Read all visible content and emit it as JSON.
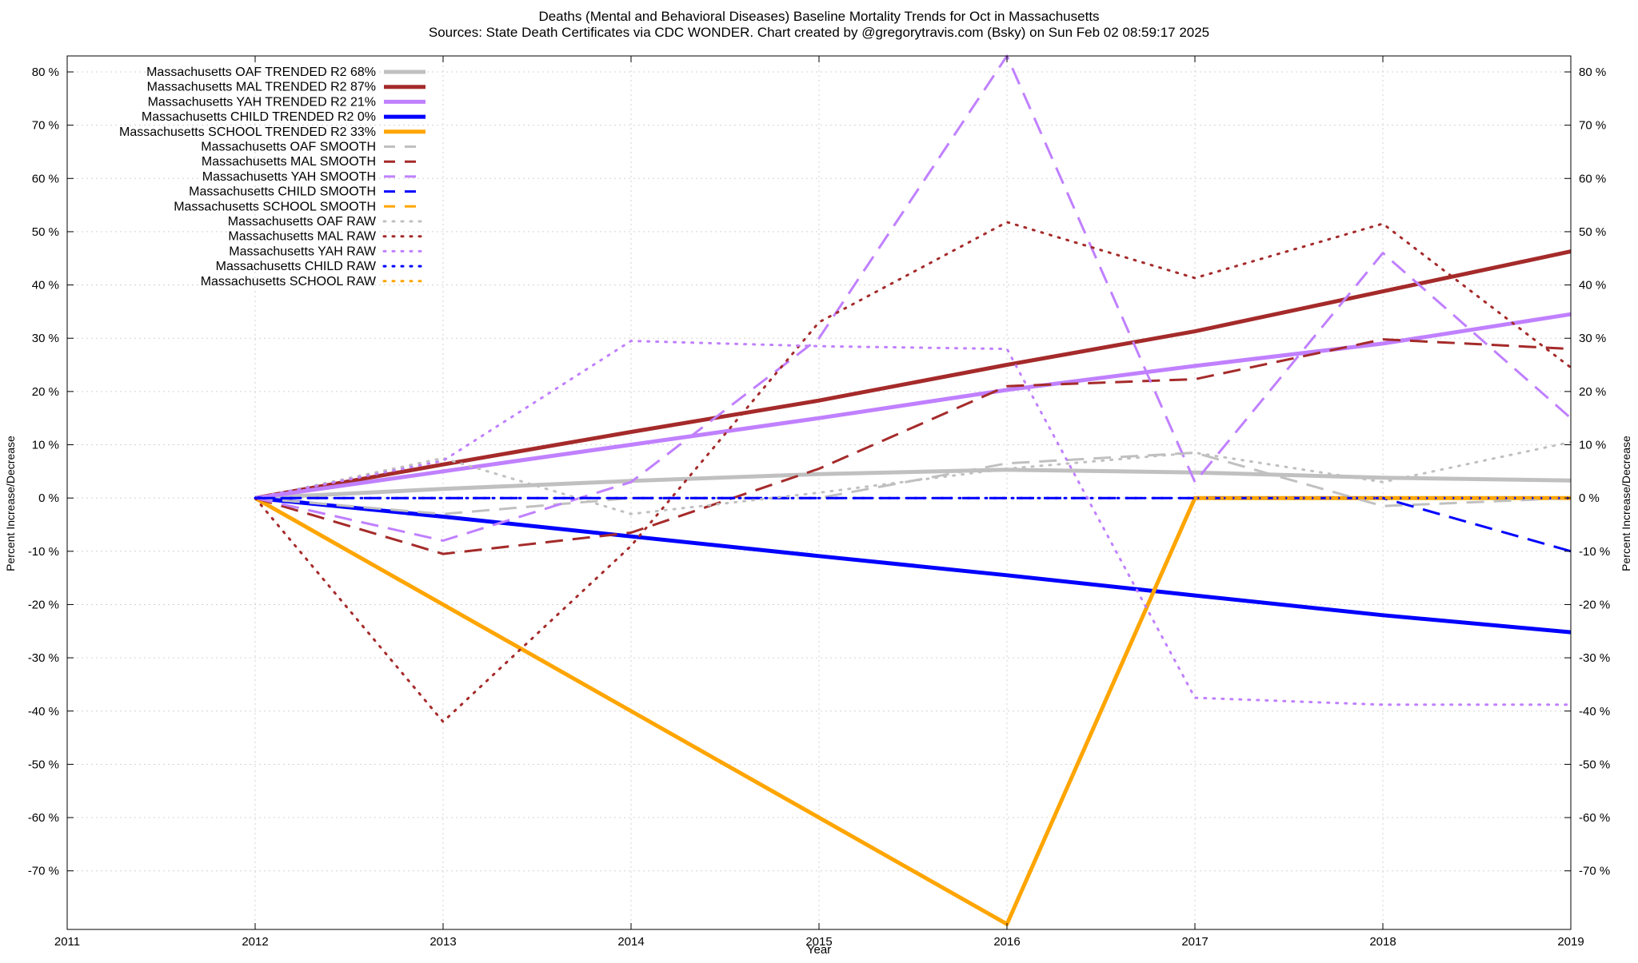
{
  "chart_data": {
    "type": "line",
    "title_line1": "Deaths (Mental and Behavioral Diseases)  Baseline Mortality Trends for Oct in Massachusetts",
    "title_line2": "Sources: State Death Certificates via CDC WONDER.               Chart created by @gregorytravis.com (Bsky) on Sun Feb 02 08:59:17 2025",
    "xlabel": "Year",
    "ylabel_left": "Percent Increase/Decrease",
    "ylabel_right": "Percent Increase/Decrease",
    "xlim": [
      2011,
      2019
    ],
    "ylim": [
      -81,
      83
    ],
    "x_ticks": [
      2011,
      2012,
      2013,
      2014,
      2015,
      2016,
      2017,
      2018,
      2019
    ],
    "x_tick_labels": [
      "2011",
      "2012",
      "2013",
      "2014",
      "2015",
      "2016",
      "2017",
      "2018",
      "2019"
    ],
    "y_ticks": [
      80,
      70,
      60,
      50,
      40,
      30,
      20,
      10,
      0,
      -10,
      -20,
      -30,
      -40,
      -50,
      -60,
      -70
    ],
    "y_tick_labels": [
      "80 %",
      "70 %",
      "60 %",
      "50 %",
      "40 %",
      "30 %",
      "20 %",
      "10 %",
      "0 %",
      "-10 %",
      "-20 %",
      "-30 %",
      "-40 %",
      "-50 %",
      "-60 %",
      "-70 %"
    ],
    "grid": true,
    "legend_position": "top-left",
    "series": [
      {
        "id": "oaf-trended",
        "name": "Massachusetts OAF TRENDED R2  68%",
        "color": "#c0c0c0",
        "style": "solid",
        "width": 5,
        "x": [
          2012,
          2013,
          2014,
          2015,
          2016,
          2017,
          2018,
          2019
        ],
        "y": [
          0,
          1.7,
          3.2,
          4.5,
          5.3,
          4.8,
          3.8,
          3.3
        ]
      },
      {
        "id": "mal-trended",
        "name": "Massachusetts MAL TRENDED R2  87%",
        "color": "#a52a2a",
        "style": "solid",
        "width": 5,
        "x": [
          2012,
          2013,
          2014,
          2015,
          2016,
          2017,
          2018,
          2019
        ],
        "y": [
          0,
          6.3,
          12.4,
          18.3,
          25.0,
          31.3,
          38.8,
          46.3
        ]
      },
      {
        "id": "yah-trended",
        "name": "Massachusetts YAH TRENDED R2  21%",
        "color": "#c080ff",
        "style": "solid",
        "width": 5,
        "x": [
          2012,
          2013,
          2014,
          2015,
          2016,
          2017,
          2018,
          2019
        ],
        "y": [
          0,
          5.0,
          10.0,
          15.0,
          20.3,
          24.8,
          29.0,
          34.5
        ]
      },
      {
        "id": "child-trended",
        "name": "Massachusetts CHILD TRENDED R2  0%",
        "color": "#0000ff",
        "style": "solid",
        "width": 5,
        "x": [
          2012,
          2013,
          2014,
          2015,
          2016,
          2017,
          2018,
          2019
        ],
        "y": [
          0,
          -3.5,
          -7.2,
          -10.9,
          -14.5,
          -18.3,
          -22.0,
          -25.2
        ]
      },
      {
        "id": "school-trended",
        "name": "Massachusetts SCHOOL TRENDED R2  33%",
        "color": "#ffa500",
        "style": "solid",
        "width": 5,
        "x": [
          2012,
          2016,
          2017,
          2018,
          2019
        ],
        "y": [
          0,
          -80,
          0,
          0,
          0
        ]
      },
      {
        "id": "oaf-smooth",
        "name": "Massachusetts OAF SMOOTH",
        "color": "#c0c0c0",
        "style": "dashed",
        "width": 3,
        "x": [
          2012,
          2013,
          2014,
          2015,
          2016,
          2017,
          2018,
          2019
        ],
        "y": [
          0,
          -3.0,
          0.0,
          0.0,
          6.5,
          8.5,
          -1.5,
          0.0
        ]
      },
      {
        "id": "mal-smooth",
        "name": "Massachusetts MAL SMOOTH",
        "color": "#a52a2a",
        "style": "dashed",
        "width": 3,
        "x": [
          2012,
          2013,
          2014,
          2015,
          2016,
          2017,
          2018,
          2019
        ],
        "y": [
          0,
          -10.5,
          -6.5,
          5.5,
          21.0,
          22.3,
          29.8,
          28.0
        ]
      },
      {
        "id": "yah-smooth",
        "name": "Massachusetts YAH SMOOTH",
        "color": "#c080ff",
        "style": "dashed",
        "width": 3,
        "x": [
          2012,
          2013,
          2014,
          2015,
          2016,
          2017,
          2018,
          2019
        ],
        "y": [
          0,
          -8.0,
          3.0,
          30.0,
          83.0,
          3.0,
          46.0,
          15.0
        ]
      },
      {
        "id": "child-smooth",
        "name": "Massachusetts CHILD SMOOTH",
        "color": "#0000ff",
        "style": "dashed",
        "width": 3,
        "x": [
          2012,
          2013,
          2014,
          2015,
          2016,
          2017,
          2018,
          2019
        ],
        "y": [
          0,
          0,
          0,
          0,
          0,
          0,
          0,
          -10.0
        ]
      },
      {
        "id": "school-smooth",
        "name": "Massachusetts SCHOOL SMOOTH",
        "color": "#ffa500",
        "style": "dashed",
        "width": 3,
        "x": [
          2017,
          2018,
          2019
        ],
        "y": [
          0,
          0,
          0
        ]
      },
      {
        "id": "oaf-raw",
        "name": "Massachusetts OAF RAW",
        "color": "#c0c0c0",
        "style": "dotted",
        "width": 3,
        "x": [
          2012,
          2013,
          2014,
          2015,
          2016,
          2017,
          2018,
          2019
        ],
        "y": [
          0,
          7.5,
          -3.0,
          1.0,
          5.5,
          8.5,
          3.0,
          10.5
        ]
      },
      {
        "id": "mal-raw",
        "name": "Massachusetts MAL RAW",
        "color": "#a52a2a",
        "style": "dotted",
        "width": 3,
        "x": [
          2012,
          2013,
          2014,
          2015,
          2016,
          2017,
          2018,
          2019
        ],
        "y": [
          0,
          -42.0,
          -9.0,
          33.0,
          51.8,
          41.3,
          51.5,
          24.5
        ]
      },
      {
        "id": "yah-raw",
        "name": "Massachusetts YAH RAW",
        "color": "#c080ff",
        "style": "dotted",
        "width": 3,
        "x": [
          2012,
          2013,
          2014,
          2015,
          2016,
          2017,
          2018,
          2019
        ],
        "y": [
          0,
          7.0,
          29.5,
          28.5,
          28.0,
          -37.5,
          -38.8,
          -38.8
        ]
      },
      {
        "id": "child-raw",
        "name": "Massachusetts CHILD RAW",
        "color": "#0000ff",
        "style": "dotted",
        "width": 3,
        "x": [
          2012,
          2013,
          2014,
          2015,
          2016,
          2017,
          2018,
          2019
        ],
        "y": [
          0,
          0,
          0,
          0,
          0,
          0,
          0,
          0
        ]
      },
      {
        "id": "school-raw",
        "name": "Massachusetts SCHOOL RAW",
        "color": "#ffa500",
        "style": "dotted",
        "width": 3,
        "x": [
          2017,
          2018,
          2019
        ],
        "y": [
          0,
          0,
          0
        ]
      }
    ]
  }
}
